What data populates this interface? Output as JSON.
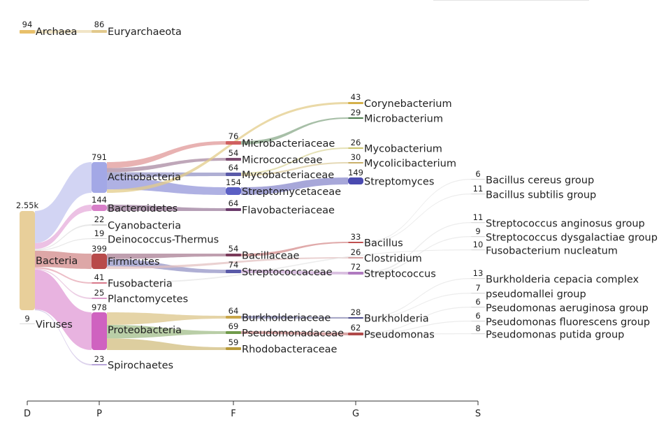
{
  "chart_data": {
    "type": "sankey",
    "axis_levels": [
      "D",
      "P",
      "F",
      "G",
      "S"
    ],
    "nodes": [
      {
        "id": "archaea",
        "name": "Archaea",
        "count": "94",
        "level": "D",
        "color": "#e8c06a"
      },
      {
        "id": "bacteria",
        "name": "Bacteria",
        "count": "2.55k",
        "level": "D",
        "color": "#e8cf9a"
      },
      {
        "id": "viruses",
        "name": "Viruses",
        "count": "9",
        "level": "D",
        "color": "#d9d9d9"
      },
      {
        "id": "euryarchaeota",
        "name": "Euryarchaeota",
        "count": "86",
        "level": "P",
        "color": "#e2c98c"
      },
      {
        "id": "actinobacteria",
        "name": "Actinobacteria",
        "count": "791",
        "level": "P",
        "color": "#a3a8e6"
      },
      {
        "id": "bacteroidetes",
        "name": "Bacteroidetes",
        "count": "144",
        "level": "P",
        "color": "#d77fc8"
      },
      {
        "id": "cyanobacteria",
        "name": "Cyanobacteria",
        "count": "22",
        "level": "P",
        "color": "#d0d0d0"
      },
      {
        "id": "deinococcus",
        "name": "Deinococcus-Thermus",
        "count": "19",
        "level": "P",
        "color": "#d0d0d0"
      },
      {
        "id": "firmicutes",
        "name": "Firmicutes",
        "count": "399",
        "level": "P",
        "color": "#b84a4a"
      },
      {
        "id": "fusobacteria",
        "name": "Fusobacteria",
        "count": "41",
        "level": "P",
        "color": "#d8778a"
      },
      {
        "id": "planctomycetes",
        "name": "Planctomycetes",
        "count": "25",
        "level": "P",
        "color": "#d99ac8"
      },
      {
        "id": "proteobacteria",
        "name": "Proteobacteria",
        "count": "978",
        "level": "P",
        "color": "#cf62c0"
      },
      {
        "id": "spirochaetes",
        "name": "Spirochaetes",
        "count": "23",
        "level": "P",
        "color": "#b7a3d8"
      },
      {
        "id": "microbacteriaceae",
        "name": "Microbacteriaceae",
        "count": "76",
        "level": "F",
        "color": "#d06060"
      },
      {
        "id": "micrococcaceae",
        "name": "Micrococcaceae",
        "count": "54",
        "level": "F",
        "color": "#7a4a6e"
      },
      {
        "id": "mycobacteriaceae",
        "name": "Mycobacteriaceae",
        "count": "64",
        "level": "F",
        "color": "#5a5aa8"
      },
      {
        "id": "streptomycetaceae",
        "name": "Streptomycetaceae",
        "count": "154",
        "level": "F",
        "color": "#5b5fc4"
      },
      {
        "id": "flavobacteriaceae",
        "name": "Flavobacteriaceae",
        "count": "64",
        "level": "F",
        "color": "#6a3a6a"
      },
      {
        "id": "bacillaceae",
        "name": "Bacillaceae",
        "count": "54",
        "level": "F",
        "color": "#7a3a5a"
      },
      {
        "id": "streptococcaceae",
        "name": "Streptococcaceae",
        "count": "74",
        "level": "F",
        "color": "#5a5aa8"
      },
      {
        "id": "burkholderiaceae",
        "name": "Burkholderiaceae",
        "count": "64",
        "level": "F",
        "color": "#c9a64a"
      },
      {
        "id": "pseudomonadaceae",
        "name": "Pseudomonadaceae",
        "count": "69",
        "level": "F",
        "color": "#6f9a4a"
      },
      {
        "id": "rhodobacteraceae",
        "name": "Rhodobacteraceae",
        "count": "59",
        "level": "F",
        "color": "#b89a3a"
      },
      {
        "id": "corynebacterium",
        "name": "Corynebacterium",
        "count": "43",
        "level": "G",
        "color": "#d4b04a"
      },
      {
        "id": "microbacterium",
        "name": "Microbacterium",
        "count": "29",
        "level": "G",
        "color": "#4a7a4a"
      },
      {
        "id": "mycobacterium",
        "name": "Mycobacterium",
        "count": "26",
        "level": "G",
        "color": "#c9c26a"
      },
      {
        "id": "mycolicibacterium",
        "name": "Mycolicibacterium",
        "count": "30",
        "level": "G",
        "color": "#c9b06a"
      },
      {
        "id": "streptomyces",
        "name": "Streptomyces",
        "count": "149",
        "level": "G",
        "color": "#4a4ab0"
      },
      {
        "id": "bacillus",
        "name": "Bacillus",
        "count": "33",
        "level": "G",
        "color": "#c05050"
      },
      {
        "id": "clostridium",
        "name": "Clostridium",
        "count": "26",
        "level": "G",
        "color": "#d4a0a0"
      },
      {
        "id": "streptococcus",
        "name": "Streptococcus",
        "count": "72",
        "level": "G",
        "color": "#b07ac0"
      },
      {
        "id": "burkholderia",
        "name": "Burkholderia",
        "count": "28",
        "level": "G",
        "color": "#4a4a8a"
      },
      {
        "id": "pseudomonas",
        "name": "Pseudomonas",
        "count": "62",
        "level": "G",
        "color": "#b04a4a"
      },
      {
        "id": "bacillus_cereus",
        "name": "Bacillus cereus group",
        "count": "6",
        "level": "S",
        "color": "#d9d9d9"
      },
      {
        "id": "bacillus_subtilis",
        "name": "Bacillus subtilis group",
        "count": "11",
        "level": "S",
        "color": "#d9d9d9"
      },
      {
        "id": "strep_anginosus",
        "name": "Streptococcus anginosus group",
        "count": "11",
        "level": "S",
        "color": "#d9d9d9"
      },
      {
        "id": "strep_dysgalactiae",
        "name": "Streptococcus dysgalactiae group",
        "count": "9",
        "level": "S",
        "color": "#d9d9d9"
      },
      {
        "id": "fuso_nucleatum",
        "name": "Fusobacterium nucleatum",
        "count": "10",
        "level": "S",
        "color": "#d9d9d9"
      },
      {
        "id": "burk_cepacia",
        "name": "Burkholderia cepacia complex",
        "count": "13",
        "level": "S",
        "color": "#d9d9d9"
      },
      {
        "id": "pseudomallei",
        "name": "pseudomallei group",
        "count": "7",
        "level": "S",
        "color": "#d9d9d9"
      },
      {
        "id": "pseud_aeruginosa",
        "name": "Pseudomonas aeruginosa group",
        "count": "6",
        "level": "S",
        "color": "#d9d9d9"
      },
      {
        "id": "pseud_fluorescens",
        "name": "Pseudomonas fluorescens group",
        "count": "6",
        "level": "S",
        "color": "#d9d9d9"
      },
      {
        "id": "pseud_putida",
        "name": "Pseudomonas putida group",
        "count": "8",
        "level": "S",
        "color": "#d9d9d9"
      }
    ],
    "links": [
      {
        "source": "archaea",
        "target": "euryarchaeota",
        "value": 86
      },
      {
        "source": "bacteria",
        "target": "actinobacteria",
        "value": 791
      },
      {
        "source": "bacteria",
        "target": "bacteroidetes",
        "value": 144
      },
      {
        "source": "bacteria",
        "target": "cyanobacteria",
        "value": 22
      },
      {
        "source": "bacteria",
        "target": "deinococcus",
        "value": 19
      },
      {
        "source": "bacteria",
        "target": "firmicutes",
        "value": 399
      },
      {
        "source": "bacteria",
        "target": "fusobacteria",
        "value": 41
      },
      {
        "source": "bacteria",
        "target": "planctomycetes",
        "value": 25
      },
      {
        "source": "bacteria",
        "target": "proteobacteria",
        "value": 978
      },
      {
        "source": "bacteria",
        "target": "spirochaetes",
        "value": 23
      },
      {
        "source": "actinobacteria",
        "target": "microbacteriaceae",
        "value": 76
      },
      {
        "source": "actinobacteria",
        "target": "micrococcaceae",
        "value": 54
      },
      {
        "source": "actinobacteria",
        "target": "mycobacteriaceae",
        "value": 64
      },
      {
        "source": "actinobacteria",
        "target": "streptomycetaceae",
        "value": 154
      },
      {
        "source": "actinobacteria",
        "target": "corynebacterium",
        "value": 43
      },
      {
        "source": "bacteroidetes",
        "target": "flavobacteriaceae",
        "value": 64
      },
      {
        "source": "firmicutes",
        "target": "bacillaceae",
        "value": 54
      },
      {
        "source": "firmicutes",
        "target": "streptococcaceae",
        "value": 74
      },
      {
        "source": "firmicutes",
        "target": "clostridium",
        "value": 26
      },
      {
        "source": "fusobacteria",
        "target": "fuso_nucleatum",
        "value": 10
      },
      {
        "source": "proteobacteria",
        "target": "burkholderiaceae",
        "value": 64
      },
      {
        "source": "proteobacteria",
        "target": "pseudomonadaceae",
        "value": 69
      },
      {
        "source": "proteobacteria",
        "target": "rhodobacteraceae",
        "value": 59
      },
      {
        "source": "microbacteriaceae",
        "target": "microbacterium",
        "value": 29
      },
      {
        "source": "mycobacteriaceae",
        "target": "mycobacterium",
        "value": 26
      },
      {
        "source": "mycobacteriaceae",
        "target": "mycolicibacterium",
        "value": 30
      },
      {
        "source": "streptomycetaceae",
        "target": "streptomyces",
        "value": 149
      },
      {
        "source": "bacillaceae",
        "target": "bacillus",
        "value": 33
      },
      {
        "source": "streptococcaceae",
        "target": "streptococcus",
        "value": 72
      },
      {
        "source": "burkholderiaceae",
        "target": "burkholderia",
        "value": 28
      },
      {
        "source": "pseudomonadaceae",
        "target": "pseudomonas",
        "value": 62
      },
      {
        "source": "bacillus",
        "target": "bacillus_cereus",
        "value": 6
      },
      {
        "source": "bacillus",
        "target": "bacillus_subtilis",
        "value": 11
      },
      {
        "source": "streptococcus",
        "target": "strep_anginosus",
        "value": 11
      },
      {
        "source": "streptococcus",
        "target": "strep_dysgalactiae",
        "value": 9
      },
      {
        "source": "burkholderia",
        "target": "burk_cepacia",
        "value": 13
      },
      {
        "source": "burkholderia",
        "target": "pseudomallei",
        "value": 7
      },
      {
        "source": "pseudomonas",
        "target": "pseud_aeruginosa",
        "value": 6
      },
      {
        "source": "pseudomonas",
        "target": "pseud_fluorescens",
        "value": 6
      },
      {
        "source": "pseudomonas",
        "target": "pseud_putida",
        "value": 8
      }
    ]
  }
}
